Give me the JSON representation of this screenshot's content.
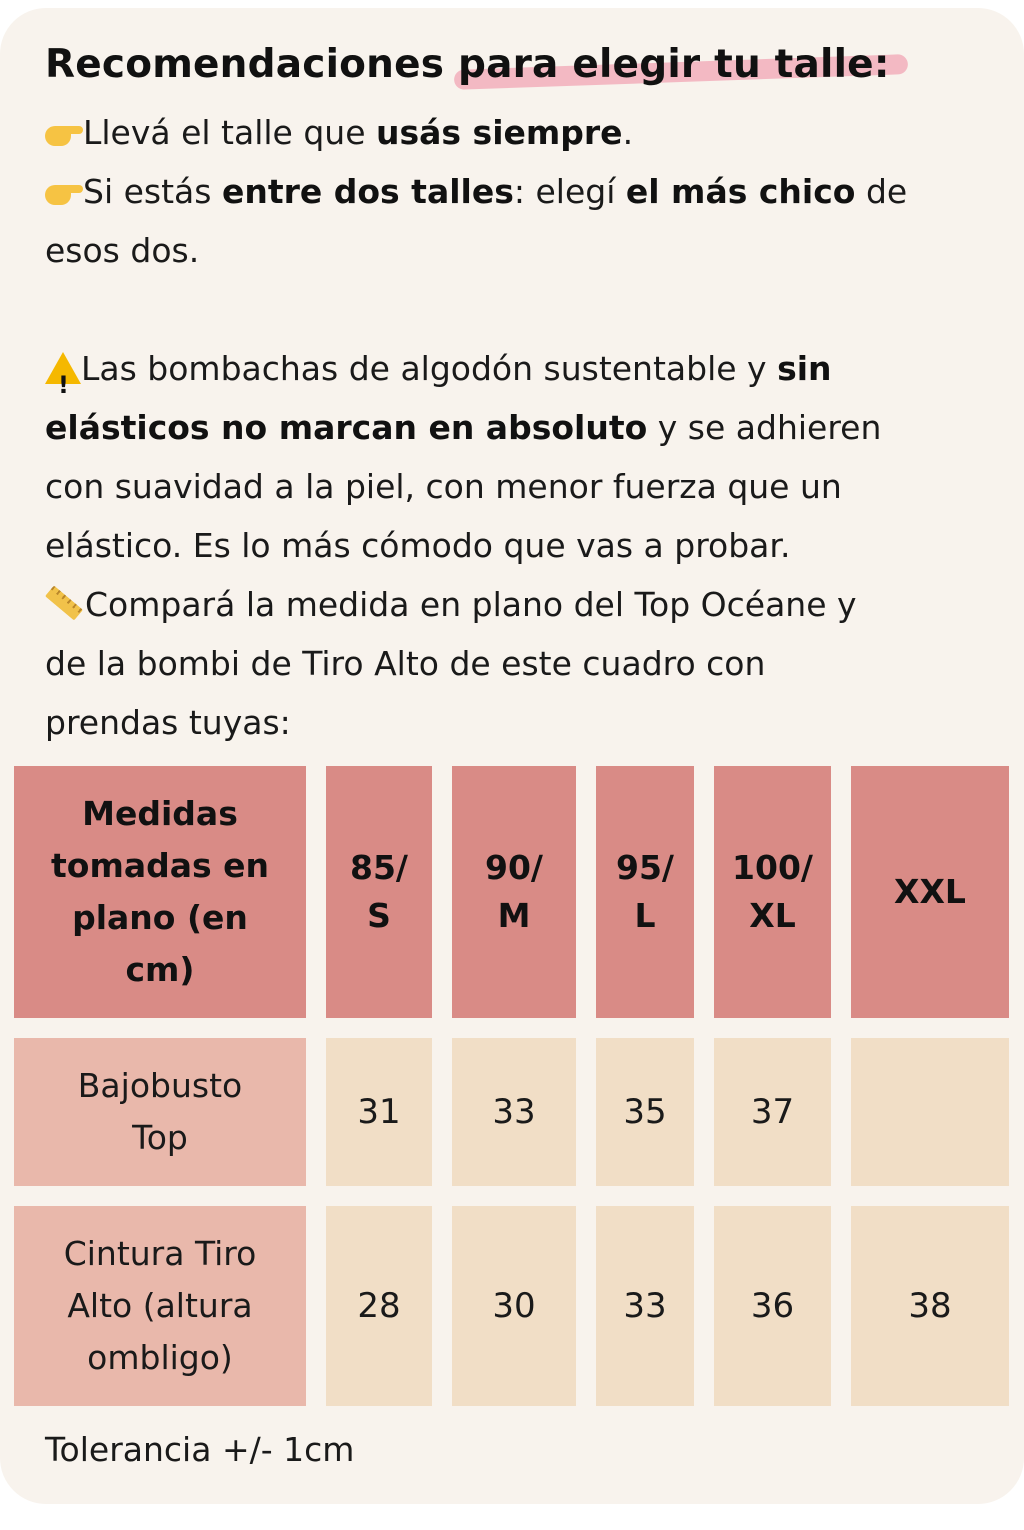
{
  "heading": {
    "part1": "Recomendaciones ",
    "highlight": "para elegir tu talle:"
  },
  "tips": {
    "tip1": {
      "pre": "Llevá el talle que ",
      "bold": "usás siempre",
      "post": "."
    },
    "tip2": {
      "pre": "Si estás ",
      "bold1": "entre dos talles",
      "mid": ": elegí ",
      "bold2": "el más chico",
      "post1": " de",
      "line2": "esos dos."
    },
    "warning": {
      "l1_pre": "Las bombachas de algodón sustentable y  ",
      "l1_bold": "sin",
      "l2_bold": "elásticos no marcan en absoluto",
      "l2_post": " y se adhieren",
      "l3": "con suavidad a la piel, con menor fuerza que un",
      "l4": "elástico. Es lo más cómodo que vas a probar."
    },
    "compare": {
      "l1": "Compará la medida en plano del Top Océane y",
      "l2": "de la bombi de Tiro Alto de este cuadro con",
      "l3": "prendas tuyas:"
    }
  },
  "icons": {
    "point": "backhand-index-pointing-right-icon",
    "warning": "warning-icon",
    "ruler": "straight-ruler-icon"
  },
  "colors": {
    "header": "#d98b86",
    "row_header": "#e9b8ab",
    "value_cell": "#f1dec6",
    "highlight": "#f2a6b4",
    "card": "#f8f3ed"
  },
  "table": {
    "corner": [
      "Medidas",
      "tomadas en",
      "plano (en",
      "cm)"
    ],
    "sizes": [
      {
        "l1": "85/",
        "l2": "S"
      },
      {
        "l1": "90/",
        "l2": "M"
      },
      {
        "l1": "95/",
        "l2": "L"
      },
      {
        "l1": "100/",
        "l2": "XL"
      },
      {
        "l1": "XXL",
        "l2": ""
      }
    ],
    "rows": [
      {
        "label": [
          "Bajobusto",
          "Top"
        ],
        "values": [
          "31",
          "33",
          "35",
          "37",
          ""
        ]
      },
      {
        "label": [
          "Cintura Tiro",
          "Alto (altura",
          "ombligo)"
        ],
        "values": [
          "28",
          "30",
          "33",
          "36",
          "38"
        ]
      }
    ]
  },
  "footer": "Tolerancia +/- 1cm"
}
